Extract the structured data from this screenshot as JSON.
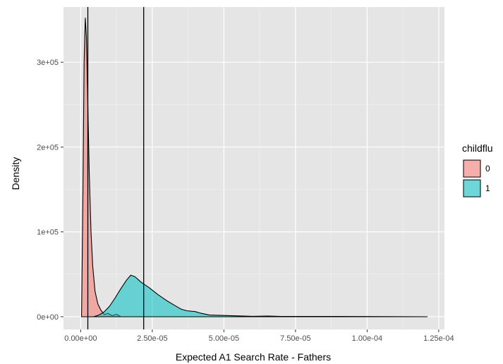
{
  "chart_data": {
    "type": "area",
    "subtype": "density",
    "xlabel": "Expected A1 Search Rate - Fathers",
    "ylabel": "Density",
    "xlim": [
      -6e-06,
      0.000127
    ],
    "ylim": [
      -15000,
      365000
    ],
    "x_ticks": [
      0,
      2.5e-05,
      5e-05,
      7.5e-05,
      0.0001,
      0.000125
    ],
    "x_tick_labels": [
      "0.00e+00",
      "2.50e-05",
      "5.00e-05",
      "7.50e-05",
      "1.00e-04",
      "1.25e-04"
    ],
    "y_ticks": [
      0,
      100000,
      200000,
      300000
    ],
    "y_tick_labels": [
      "0e+00",
      "1e+05",
      "2e+05",
      "3e+05"
    ],
    "grid": true,
    "background": "#e5e5e5",
    "legend": {
      "title": "childflu",
      "position": "right",
      "entries": [
        {
          "label": "0",
          "color": "#f8766d"
        },
        {
          "label": "1",
          "color": "#00bfc4"
        }
      ]
    },
    "vlines": [
      2.5e-06,
      2.2e-05
    ],
    "series": [
      {
        "name": "0",
        "color": "#f8766d",
        "x": [
          3e-07,
          8e-07,
          1.2e-06,
          1.6e-06,
          2e-06,
          2.5e-06,
          3e-06,
          3.6e-06,
          4.2e-06,
          5e-06,
          6e-06,
          7e-06,
          8.3e-06,
          9.5e-06,
          1.1e-05,
          1.25e-05,
          1.4e-05
        ],
        "values": [
          0,
          150000,
          300000,
          352000,
          330000,
          250000,
          170000,
          100000,
          60000,
          30000,
          15000,
          8000,
          2500,
          4000,
          1200,
          3000,
          0
        ]
      },
      {
        "name": "1",
        "color": "#00bfc4",
        "x": [
          4.5e-06,
          6e-06,
          8e-06,
          1e-05,
          1.2e-05,
          1.4e-05,
          1.6e-05,
          1.75e-05,
          1.9e-05,
          2.1e-05,
          2.4e-05,
          2.7e-05,
          3e-05,
          3.3e-05,
          3.5e-05,
          3.7e-05,
          4e-05,
          4.2e-05,
          4.5e-05,
          5e-05,
          5.5e-05,
          6e-05,
          6.5e-05,
          7e-05,
          8e-05,
          9e-05,
          0.0001,
          0.000121
        ],
        "values": [
          0,
          1500,
          5000,
          12000,
          22000,
          33000,
          43000,
          49000,
          47000,
          41000,
          34000,
          26000,
          19000,
          13000,
          9000,
          7000,
          6000,
          4000,
          2000,
          1500,
          1000,
          500,
          800,
          400,
          300,
          300,
          200,
          0
        ]
      }
    ]
  }
}
